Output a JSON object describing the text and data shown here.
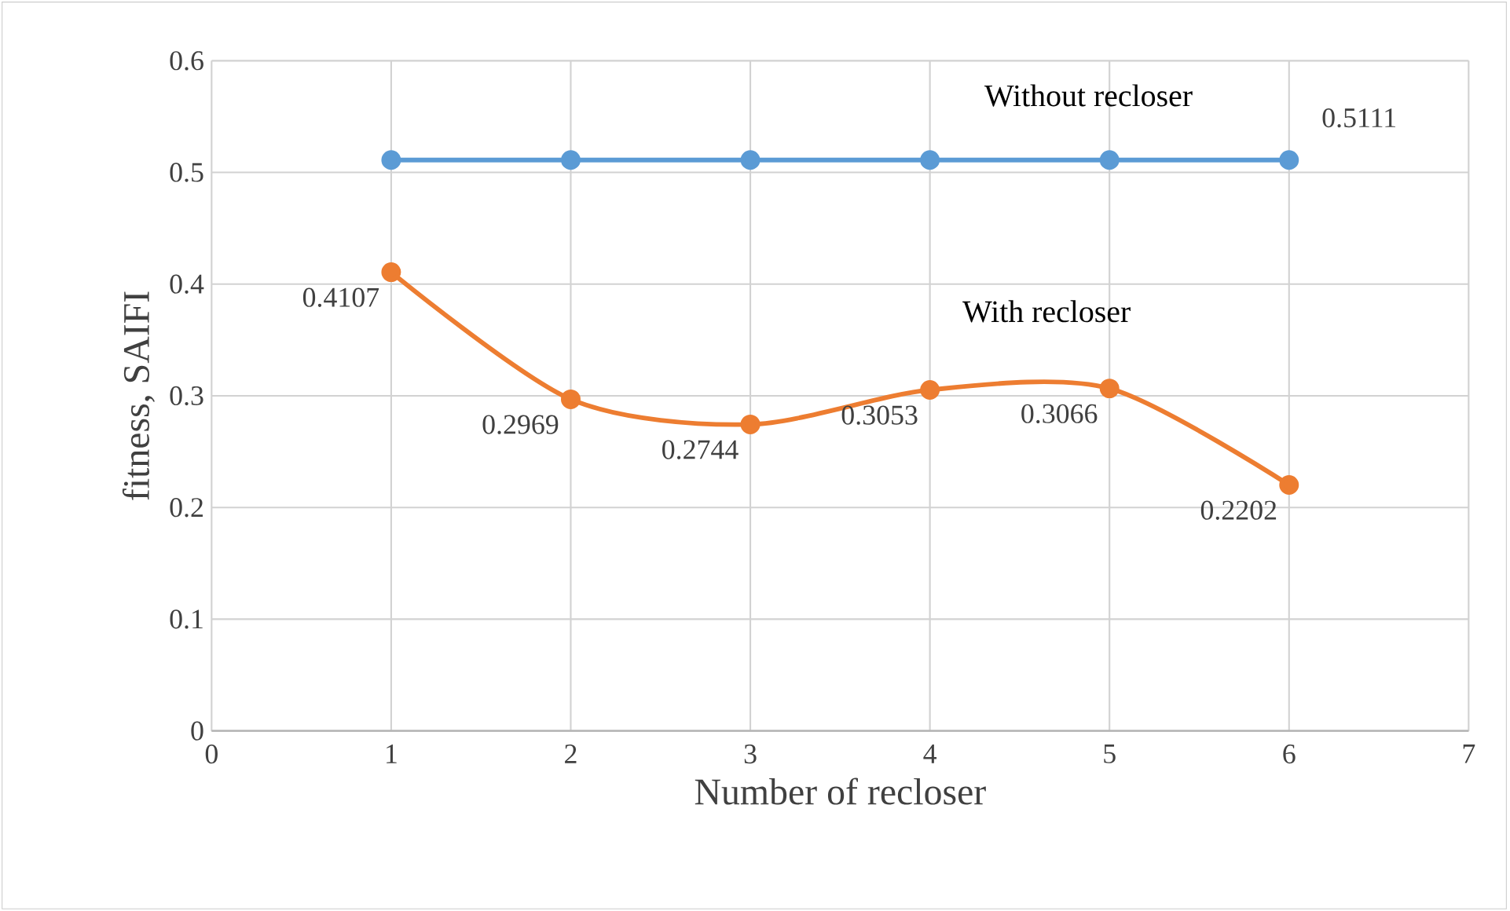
{
  "chart_data": {
    "type": "line",
    "xlabel": "Number of recloser",
    "ylabel": "fitness,  SAIFI",
    "x": [
      1,
      2,
      3,
      4,
      5,
      6
    ],
    "series": [
      {
        "name": "Without recloser",
        "color": "#5b9bd5",
        "values": [
          0.5111,
          0.5111,
          0.5111,
          0.5111,
          0.5111,
          0.5111
        ],
        "value_labels": [
          null,
          null,
          null,
          null,
          null,
          "0.5111"
        ]
      },
      {
        "name": "With recloser",
        "color": "#ed7d31",
        "values": [
          0.4107,
          0.2969,
          0.2744,
          0.3053,
          0.3066,
          0.2202
        ],
        "value_labels": [
          "0.4107",
          "0.2969",
          "0.2744",
          "0.3053",
          "0.3066",
          "0.2202"
        ]
      }
    ],
    "xlim": [
      0,
      7
    ],
    "xticks": [
      0,
      1,
      2,
      3,
      4,
      5,
      6,
      7
    ],
    "ylim": [
      0,
      0.6
    ],
    "yticks": [
      0,
      0.1,
      0.2,
      0.3,
      0.4,
      0.5,
      0.6
    ],
    "grid": true,
    "marker": "circle",
    "line_style": "solid"
  }
}
